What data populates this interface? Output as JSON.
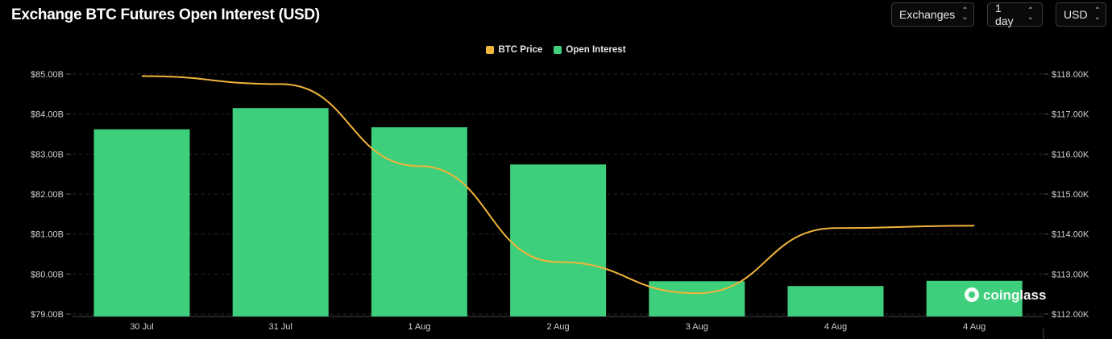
{
  "header": {
    "title": "Exchange BTC Futures Open Interest (USD)"
  },
  "controls": {
    "exchanges": "Exchanges",
    "interval": "1 day",
    "currency": "USD"
  },
  "watermark": "coinglass",
  "colors": {
    "background": "#000000",
    "bar": "#3ecf7c",
    "line": "#f0b43a",
    "grid": "#2a2a2a"
  },
  "chart_data": {
    "type": "bar",
    "categories": [
      "30 Jul",
      "31 Jul",
      "1 Aug",
      "2 Aug",
      "3 Aug",
      "4 Aug",
      "4 Aug"
    ],
    "legend": [
      "BTC Price",
      "Open Interest"
    ],
    "legend_position": "top-center",
    "grid": true,
    "series": [
      {
        "name": "Open Interest",
        "type": "bar",
        "axis": "left",
        "values": [
          83.62,
          84.15,
          83.67,
          82.74,
          79.82,
          79.7,
          79.83
        ]
      },
      {
        "name": "BTC Price",
        "type": "line",
        "axis": "right",
        "values": [
          117950,
          117750,
          115700,
          113300,
          112520,
          114150,
          114210
        ]
      }
    ],
    "left_axis": {
      "ylim": [
        78.9,
        85.2
      ],
      "ticks": [
        85,
        84,
        83,
        82,
        81,
        80,
        79
      ],
      "tick_labels": [
        "$85.00B",
        "$84.00B",
        "$83.00B",
        "$82.00B",
        "$81.00B",
        "$80.00B",
        "$79.00B"
      ]
    },
    "right_axis": {
      "ylim": [
        112000,
        118000
      ],
      "ticks": [
        118000,
        117000,
        116000,
        115000,
        114000,
        113000,
        112000
      ],
      "tick_labels": [
        "$118.00K",
        "$117.00K",
        "$116.00K",
        "$115.00K",
        "$114.00K",
        "$113.00K",
        "$112.00K"
      ]
    }
  }
}
